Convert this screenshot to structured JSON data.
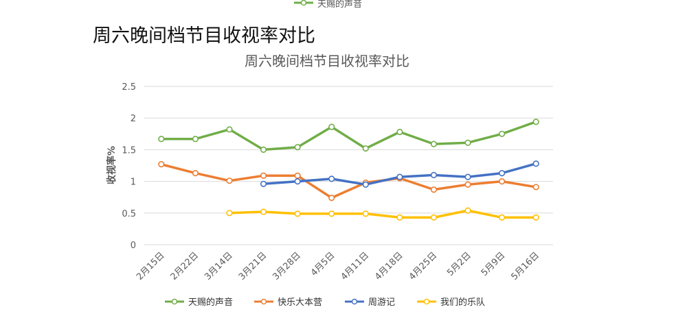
{
  "top_legend": {
    "label": "天赐的声音",
    "color": "#70AD47"
  },
  "document_title": "周六晚间档节目收视率对比",
  "chart_data": {
    "type": "line",
    "title": "周六晚间档节目收视率对比",
    "xlabel": "",
    "ylabel": "收视率%",
    "ylim": [
      0,
      2.5
    ],
    "yticks": [
      "0",
      "0.5",
      "1",
      "1.5",
      "2",
      "2.5"
    ],
    "grid": true,
    "legend_position": "bottom",
    "categories": [
      "2月15日",
      "2月22日",
      "3月14日",
      "3月21日",
      "3月28日",
      "4月5日",
      "4月11日",
      "4月18日",
      "4月25日",
      "5月2日",
      "5月9日",
      "5月16日"
    ],
    "series": [
      {
        "name": "天赐的声音",
        "color": "#70AD47",
        "values": [
          1.67,
          1.67,
          1.82,
          1.5,
          1.54,
          1.86,
          1.52,
          1.78,
          1.59,
          1.61,
          1.75,
          1.94
        ]
      },
      {
        "name": "快乐大本营",
        "color": "#ED7D31",
        "values": [
          1.27,
          1.13,
          1.01,
          1.09,
          1.09,
          0.74,
          0.98,
          1.05,
          0.87,
          0.95,
          1.0,
          0.91
        ]
      },
      {
        "name": "周游记",
        "color": "#4472C4",
        "values": [
          null,
          null,
          null,
          0.96,
          1.0,
          1.04,
          0.95,
          1.07,
          1.1,
          1.07,
          1.13,
          1.28
        ]
      },
      {
        "name": "我们的乐队",
        "color": "#FFC000",
        "values": [
          null,
          null,
          0.5,
          0.52,
          0.49,
          0.49,
          0.49,
          0.43,
          0.43,
          0.54,
          0.43,
          0.43
        ]
      }
    ]
  }
}
